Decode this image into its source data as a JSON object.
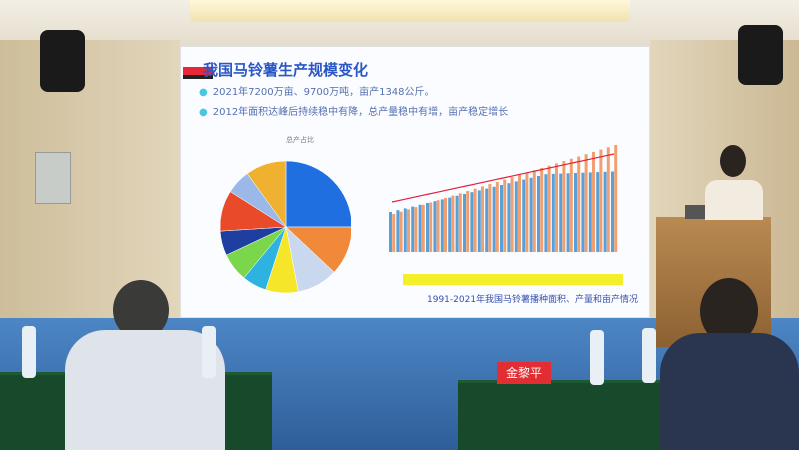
{
  "slide": {
    "title": "我国马铃薯生产规模变化",
    "bullets": [
      "2021年7200万亩、9700万吨，亩产1348公斤。",
      "2012年面积达峰后持续稳中有降，总产量稳中有增，亩产稳定增长"
    ],
    "pie_title": "总产占比",
    "caption": "1991-2021年我国马铃薯播种面积、产量和亩产情况",
    "pie_colors": [
      "#1f6fe0",
      "#f08a3a",
      "#c9d8ee",
      "#f5e62a",
      "#2eb2e0",
      "#7ad64a",
      "#1f3fa0",
      "#e84a2a",
      "#9ab8e8",
      "#f0b030"
    ],
    "bar_colors": {
      "area": "#5aa0d8",
      "production": "#f0a070",
      "yield_line": "#e0203a"
    }
  },
  "name_tag": "金黎平"
}
